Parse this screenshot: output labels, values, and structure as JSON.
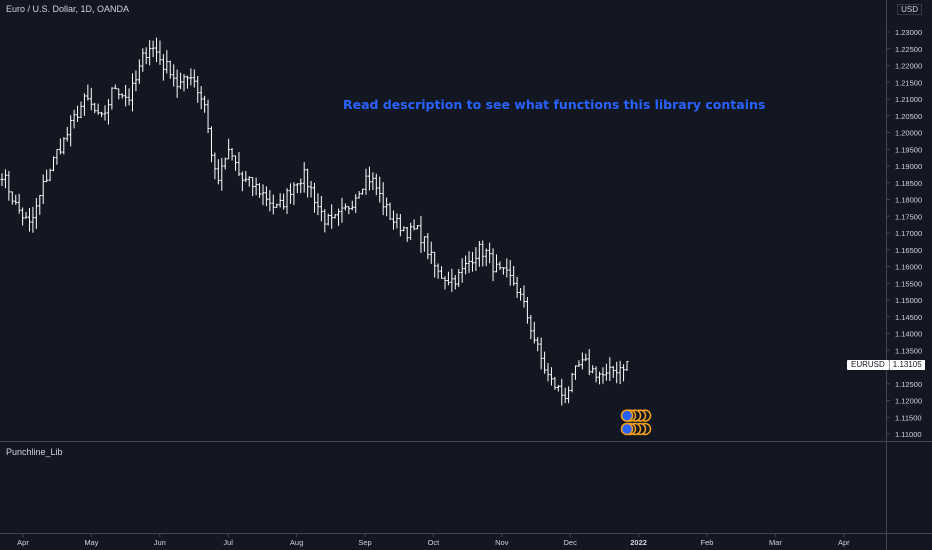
{
  "header": {
    "symbol_title": "Euro / U.S. Dollar, 1D, OANDA",
    "currency": "USD"
  },
  "annotation": "Read description to see what functions this library contains",
  "indicator_pane": {
    "title": "Punchline_Lib"
  },
  "price_badge": {
    "symbol": "EURUSD",
    "value": "1.13105"
  },
  "colors": {
    "background": "#131722",
    "bars": "#ffffff",
    "annotation": "#2962ff",
    "marker_fill": "#2962ff",
    "marker_stroke": "#f7a21b",
    "grid_line": "#434651"
  },
  "chart_data": {
    "type": "ohlc",
    "ylim": [
      1.107,
      1.238
    ],
    "grid": false,
    "y_ticks": [
      "1.23000",
      "1.22500",
      "1.22000",
      "1.21500",
      "1.21000",
      "1.20500",
      "1.20000",
      "1.19500",
      "1.19000",
      "1.18500",
      "1.18000",
      "1.17500",
      "1.17000",
      "1.16500",
      "1.16000",
      "1.15500",
      "1.15000",
      "1.14500",
      "1.14000",
      "1.13500",
      "1.13000",
      "1.12500",
      "1.12000",
      "1.11500",
      "1.11000"
    ],
    "x_ticks": [
      "Apr",
      "May",
      "Jun",
      "Jul",
      "Aug",
      "Sep",
      "Oct",
      "Nov",
      "Dec",
      "2022",
      "Feb",
      "Mar",
      "Apr"
    ],
    "series_close_approx": [
      1.188,
      1.183,
      1.178,
      1.175,
      1.172,
      1.178,
      1.185,
      1.19,
      1.195,
      1.198,
      1.203,
      1.207,
      1.21,
      1.207,
      1.203,
      1.208,
      1.214,
      1.212,
      1.21,
      1.215,
      1.222,
      1.226,
      1.224,
      1.22,
      1.219,
      1.214,
      1.215,
      1.218,
      1.212,
      1.208,
      1.19,
      1.186,
      1.194,
      1.192,
      1.186,
      1.185,
      1.184,
      1.182,
      1.18,
      1.177,
      1.179,
      1.183,
      1.186,
      1.187,
      1.183,
      1.178,
      1.174,
      1.173,
      1.175,
      1.177,
      1.18,
      1.184,
      1.187,
      1.185,
      1.18,
      1.176,
      1.173,
      1.172,
      1.17,
      1.171,
      1.168,
      1.163,
      1.158,
      1.157,
      1.156,
      1.157,
      1.16,
      1.163,
      1.165,
      1.164,
      1.16,
      1.158,
      1.157,
      1.155,
      1.15,
      1.144,
      1.137,
      1.131,
      1.126,
      1.124,
      1.121,
      1.125,
      1.13,
      1.131,
      1.129,
      1.128,
      1.127,
      1.129,
      1.13,
      1.131
    ],
    "markers": [
      {
        "label": "marker-1",
        "price": 1.1155
      },
      {
        "label": "marker-2",
        "price": 1.1115
      }
    ]
  }
}
